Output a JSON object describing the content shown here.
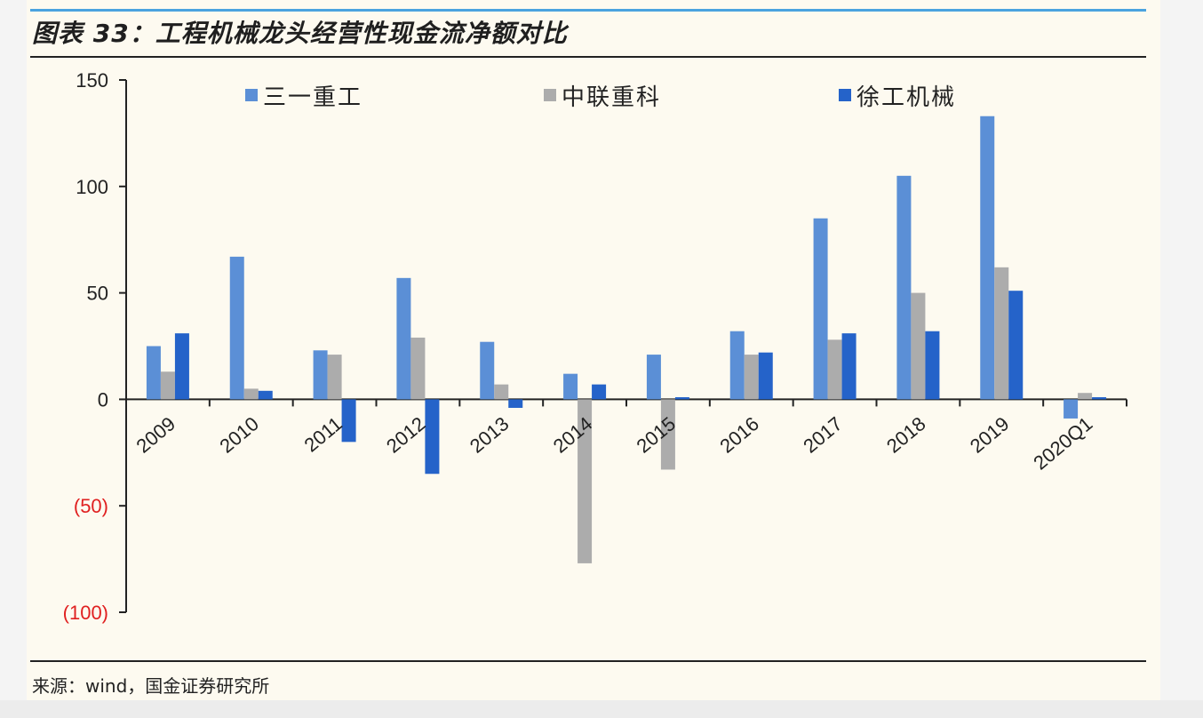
{
  "title": "图表 33：工程机械龙头经营性现金流净额对比",
  "source": "来源：wind，国金证券研究所",
  "chart_data": {
    "type": "bar",
    "title": "图表 33：工程机械龙头经营性现金流净额对比",
    "categories": [
      "2009",
      "2010",
      "2011",
      "2012",
      "2013",
      "2014",
      "2015",
      "2016",
      "2017",
      "2018",
      "2019",
      "2020Q1"
    ],
    "series": [
      {
        "name": "三一重工",
        "color": "#5b8fd6",
        "values": [
          25,
          67,
          23,
          57,
          27,
          12,
          21,
          32,
          85,
          105,
          133,
          -9
        ]
      },
      {
        "name": "中联重科",
        "color": "#acacac",
        "values": [
          13,
          5,
          21,
          29,
          7,
          -77,
          -33,
          21,
          28,
          50,
          62,
          3
        ]
      },
      {
        "name": "徐工机械",
        "color": "#2563c9",
        "values": [
          31,
          4,
          -20,
          -35,
          -4,
          7,
          1,
          22,
          31,
          32,
          51,
          1
        ]
      }
    ],
    "ylim": [
      -100,
      150
    ],
    "yticks": [
      150,
      100,
      50,
      0,
      -50,
      -100
    ],
    "ytick_labels": [
      "150",
      "100",
      "50",
      "0",
      "(50)",
      "(100)"
    ],
    "negative_tick_color": "#e02020",
    "xlabel": "",
    "ylabel": "",
    "legend_position": "top",
    "grid": false
  }
}
